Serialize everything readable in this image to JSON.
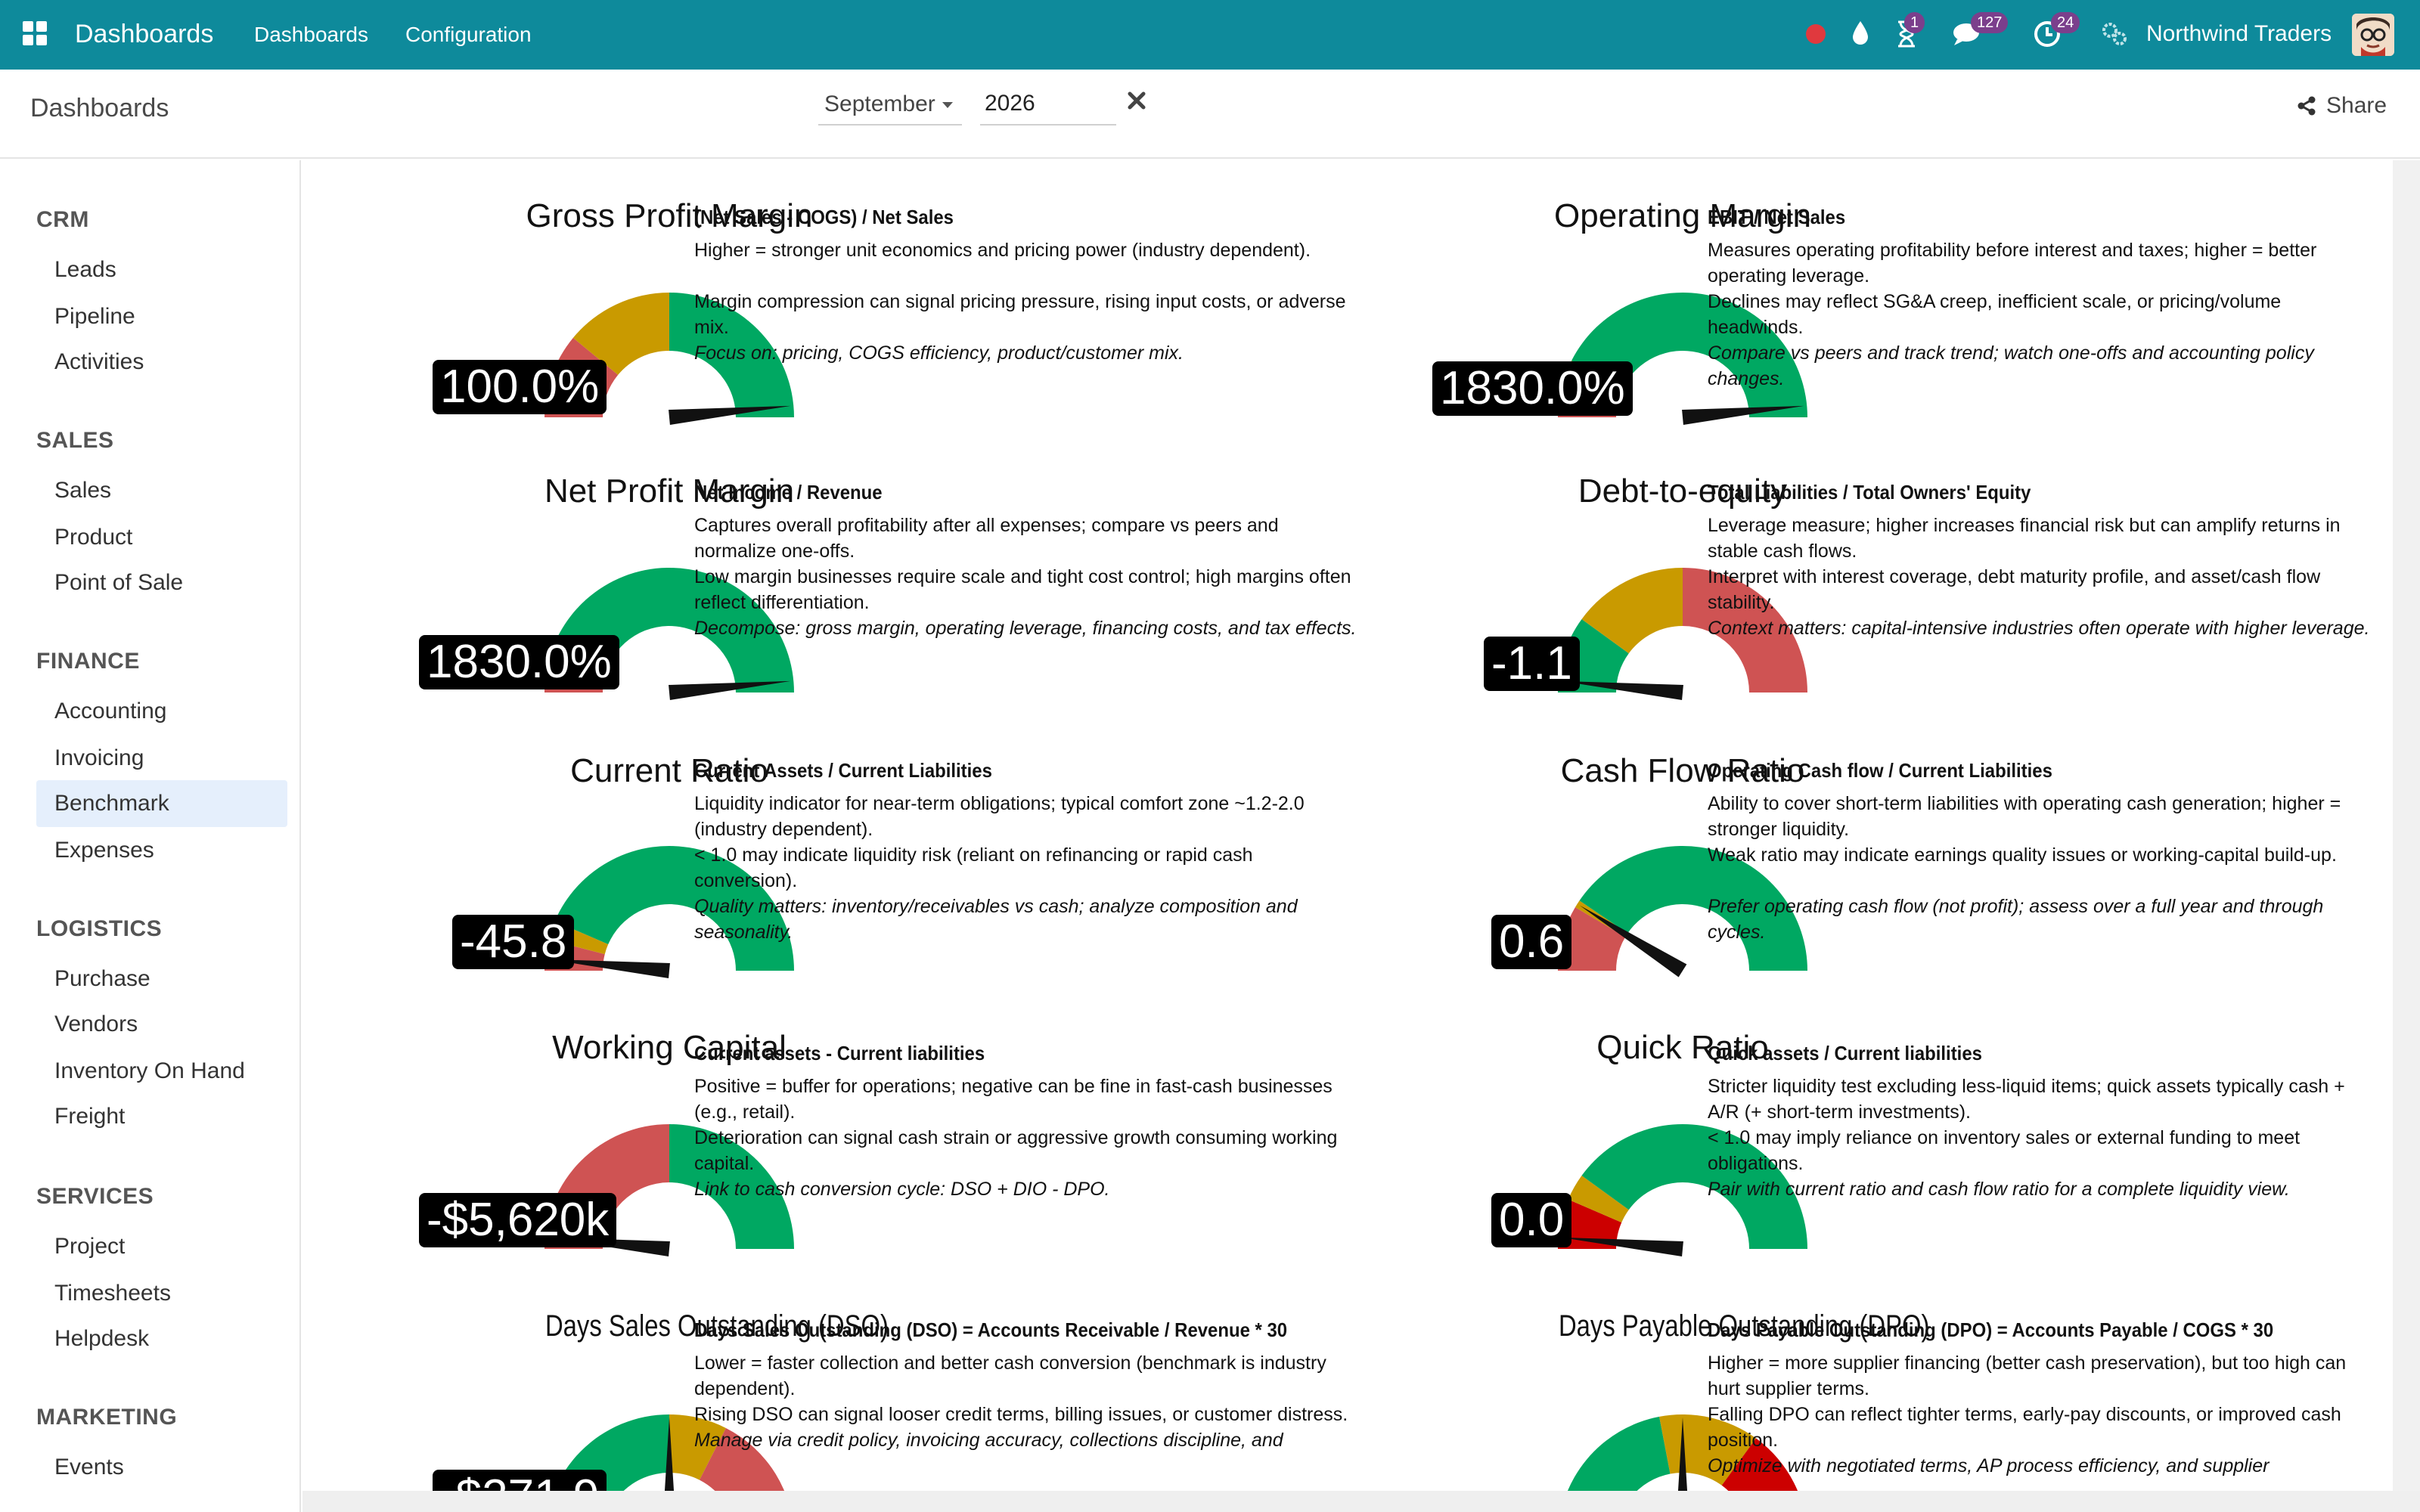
{
  "navbar": {
    "brand": "Dashboards",
    "menu": [
      "Dashboards",
      "Configuration"
    ],
    "badges": {
      "activity": "1",
      "messages": "127",
      "clock": "24"
    },
    "company": "Northwind Traders",
    "bg_color": "#0e8a9b"
  },
  "controlbar": {
    "title": "Dashboards",
    "month": "September",
    "year": "2026",
    "share_label": "Share"
  },
  "sidebar": {
    "sections": [
      {
        "title": "CRM",
        "items": [
          "Leads",
          "Pipeline",
          "Activities"
        ]
      },
      {
        "title": "SALES",
        "items": [
          "Sales",
          "Product",
          "Point of Sale"
        ]
      },
      {
        "title": "FINANCE",
        "items": [
          "Accounting",
          "Invoicing",
          "Benchmark",
          "Expenses"
        ]
      },
      {
        "title": "LOGISTICS",
        "items": [
          "Purchase",
          "Vendors",
          "Inventory On Hand",
          "Freight"
        ]
      },
      {
        "title": "SERVICES",
        "items": [
          "Project",
          "Timesheets",
          "Helpdesk"
        ]
      },
      {
        "title": "MARKETING",
        "items": [
          "Events"
        ]
      }
    ],
    "active_item": "Benchmark"
  },
  "colors": {
    "red": "#cf5353",
    "amber": "#c99a00",
    "green": "#00a862",
    "dark_red": "#cc0000"
  },
  "kpis": [
    {
      "title": "Gross Profit Margin",
      "value": "100.0%",
      "needle": 0.97,
      "bands": [
        [
          "#cf5353",
          0.22
        ],
        [
          "#c99a00",
          0.28
        ],
        [
          "#00a862",
          0.5
        ]
      ],
      "formula": "(Net Sales - COGS) / Net Sales",
      "lines": [
        "Higher = stronger unit economics and pricing power (industry dependent).",
        "",
        "Margin compression can signal pricing pressure, rising input costs, or adverse mix."
      ],
      "focus": "Focus on: pricing, COGS efficiency, product/customer mix."
    },
    {
      "title": "Operating Margin",
      "value": "1830.0%",
      "needle": 0.97,
      "bands": [
        [
          "#cf5353",
          0.05
        ],
        [
          "#c99a00",
          0.1
        ],
        [
          "#00a862",
          0.85
        ]
      ],
      "formula": "EBIT / Net Sales",
      "lines": [
        "Measures operating profitability before interest and taxes; higher = better operating leverage.",
        "Declines may reflect SG&A creep, inefficient scale, or pricing/volume headwinds."
      ],
      "focus": "Compare vs peers and track trend; watch one-offs and accounting policy changes."
    },
    {
      "title": "Net Profit Margin",
      "value": "1830.0%",
      "needle": 0.97,
      "bands": [
        [
          "#cf5353",
          0.05
        ],
        [
          "#c99a00",
          0.05
        ],
        [
          "#00a862",
          0.9
        ]
      ],
      "formula": "Net Income / Revenue",
      "lines": [
        "Captures overall profitability after all expenses; compare vs peers and normalize one-offs.",
        "Low margin businesses require scale and tight cost control; high margins often reflect differentiation."
      ],
      "focus": "Decompose: gross margin, operating leverage, financing costs, and tax effects."
    },
    {
      "title": "Debt-to-equity",
      "value": "-1.1",
      "needle": 0.03,
      "bands": [
        [
          "#00a862",
          0.2
        ],
        [
          "#c99a00",
          0.3
        ],
        [
          "#cf5353",
          0.5
        ]
      ],
      "formula": "Total Liabilities / Total Owners' Equity",
      "lines": [
        "Leverage measure; higher increases financial risk but can amplify returns in stable cash flows.",
        "Interpret with interest coverage, debt maturity profile, and asset/cash flow stability."
      ],
      "focus": "Context matters: capital-intensive industries often operate with higher leverage."
    },
    {
      "title": "Current Ratio",
      "value": "-45.8",
      "needle": 0.03,
      "bands": [
        [
          "#cf5353",
          0.08
        ],
        [
          "#c99a00",
          0.05
        ],
        [
          "#00a862",
          0.87
        ]
      ],
      "formula": "Current Assets / Current Liabilities",
      "lines": [
        "Liquidity indicator for near-term obligations; typical comfort zone ~1.2-2.0 (industry dependent).",
        "< 1.0 may indicate liquidity risk (reliant on refinancing or rapid cash conversion)."
      ],
      "focus": "Quality matters: inventory/receivables vs cash; analyze composition and seasonality."
    },
    {
      "title": "Cash Flow Ratio",
      "value": "0.6",
      "needle": 0.18,
      "bands": [
        [
          "#cf5353",
          0.17
        ],
        [
          "#c99a00",
          0.02
        ],
        [
          "#00a862",
          0.81
        ]
      ],
      "formula": "Operating Cash flow / Current Liabilities",
      "lines": [
        "Ability to cover short-term liabilities with operating cash generation; higher = stronger liquidity.",
        "Weak ratio may indicate earnings quality issues or working-capital build-up.",
        ""
      ],
      "focus": "Prefer operating cash flow (not profit); assess over a full year and through cycles."
    },
    {
      "title": "Working Capital",
      "value": "-$5,620k",
      "needle": 0.03,
      "bands": [
        [
          "#cf5353",
          0.5
        ],
        [
          "#00a862",
          0.5
        ]
      ],
      "formula": "Current assets - Current liabilities",
      "lines": [
        "Positive = buffer for operations; negative can be fine in fast-cash businesses (e.g., retail).",
        "Deterioration can signal cash strain or aggressive growth consuming working capital."
      ],
      "focus": "Link to cash conversion cycle: DSO + DIO - DPO."
    },
    {
      "title": "Quick Ratio",
      "value": "0.0",
      "needle": 0.03,
      "bands": [
        [
          "#cc0000",
          0.13
        ],
        [
          "#c99a00",
          0.07
        ],
        [
          "#00a862",
          0.8
        ]
      ],
      "formula": "Quick assets / Current liabilities",
      "lines": [
        "Stricter liquidity test excluding less-liquid items; quick assets typically cash + A/R (+ short-term investments).",
        "< 1.0 may imply reliance on inventory sales or external funding to meet obligations."
      ],
      "focus": "Pair with current ratio and cash flow ratio for a complete liquidity view."
    },
    {
      "title": "Days Sales Outstanding (DSO)",
      "value": "-$271.9",
      "needle": 0.5,
      "bands": [
        [
          "#00a862",
          0.5
        ],
        [
          "#c99a00",
          0.15
        ],
        [
          "#cf5353",
          0.35
        ]
      ],
      "formula": "Days Sales Outstanding (DSO) = Accounts Receivable / Revenue * 30",
      "lines": [
        "Lower = faster collection and better cash conversion (benchmark is industry dependent).",
        "Rising DSO can signal looser credit terms, billing issues, or customer distress."
      ],
      "focus": "Manage via credit policy, invoicing accuracy, collections discipline, and"
    },
    {
      "title": "Days Payable Outstanding (DPO)",
      "value": "",
      "needle": 0.5,
      "bands": [
        [
          "#00a862",
          0.44
        ],
        [
          "#c99a00",
          0.26
        ],
        [
          "#cc0000",
          0.3
        ]
      ],
      "formula": "Days Payable Outstanding (DPO) = Accounts Payable / COGS * 30",
      "lines": [
        "Higher = more supplier financing (better cash preservation), but too high can hurt supplier terms.",
        "Falling DPO can reflect tighter terms, early-pay discounts, or improved cash position."
      ],
      "focus": "Optimize with negotiated terms, AP process efficiency, and supplier"
    }
  ]
}
